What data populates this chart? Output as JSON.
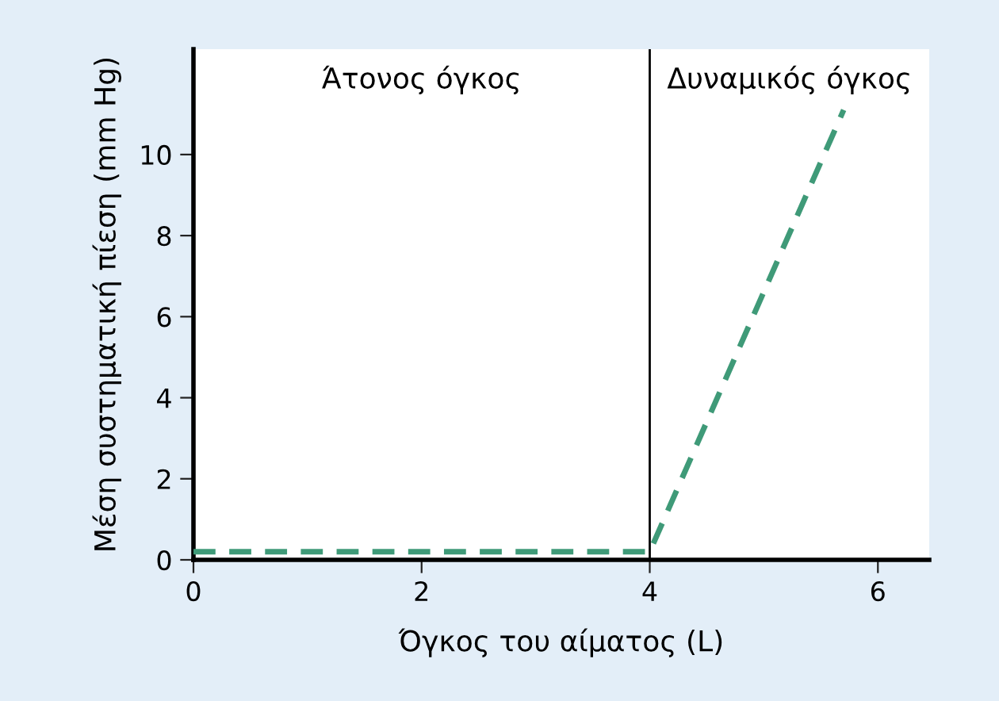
{
  "chart_data": {
    "type": "line",
    "xlabel": "Όγκος του αίματος (L)",
    "ylabel": "Μέση συστηματική πίεση (mm Hg)",
    "x": [
      0,
      4,
      5.7
    ],
    "series": [
      {
        "color": "#3f9a78",
        "values": [
          0.2,
          0.2,
          11.1
        ]
      }
    ],
    "line_style": "dashed",
    "marker": "none",
    "grid": false,
    "legend": false,
    "xlim": [
      0,
      6.45
    ],
    "xticks": [
      0,
      2,
      4,
      6
    ],
    "ylim": [
      0,
      12.6
    ],
    "yticks": [
      0,
      2,
      4,
      6,
      8,
      10
    ],
    "ref_lines": [
      {
        "axis": "x",
        "value": 4,
        "color": "#000000"
      }
    ],
    "annotations": [
      "Άτονος όγκος",
      "Δυναμικός όγκος"
    ]
  }
}
